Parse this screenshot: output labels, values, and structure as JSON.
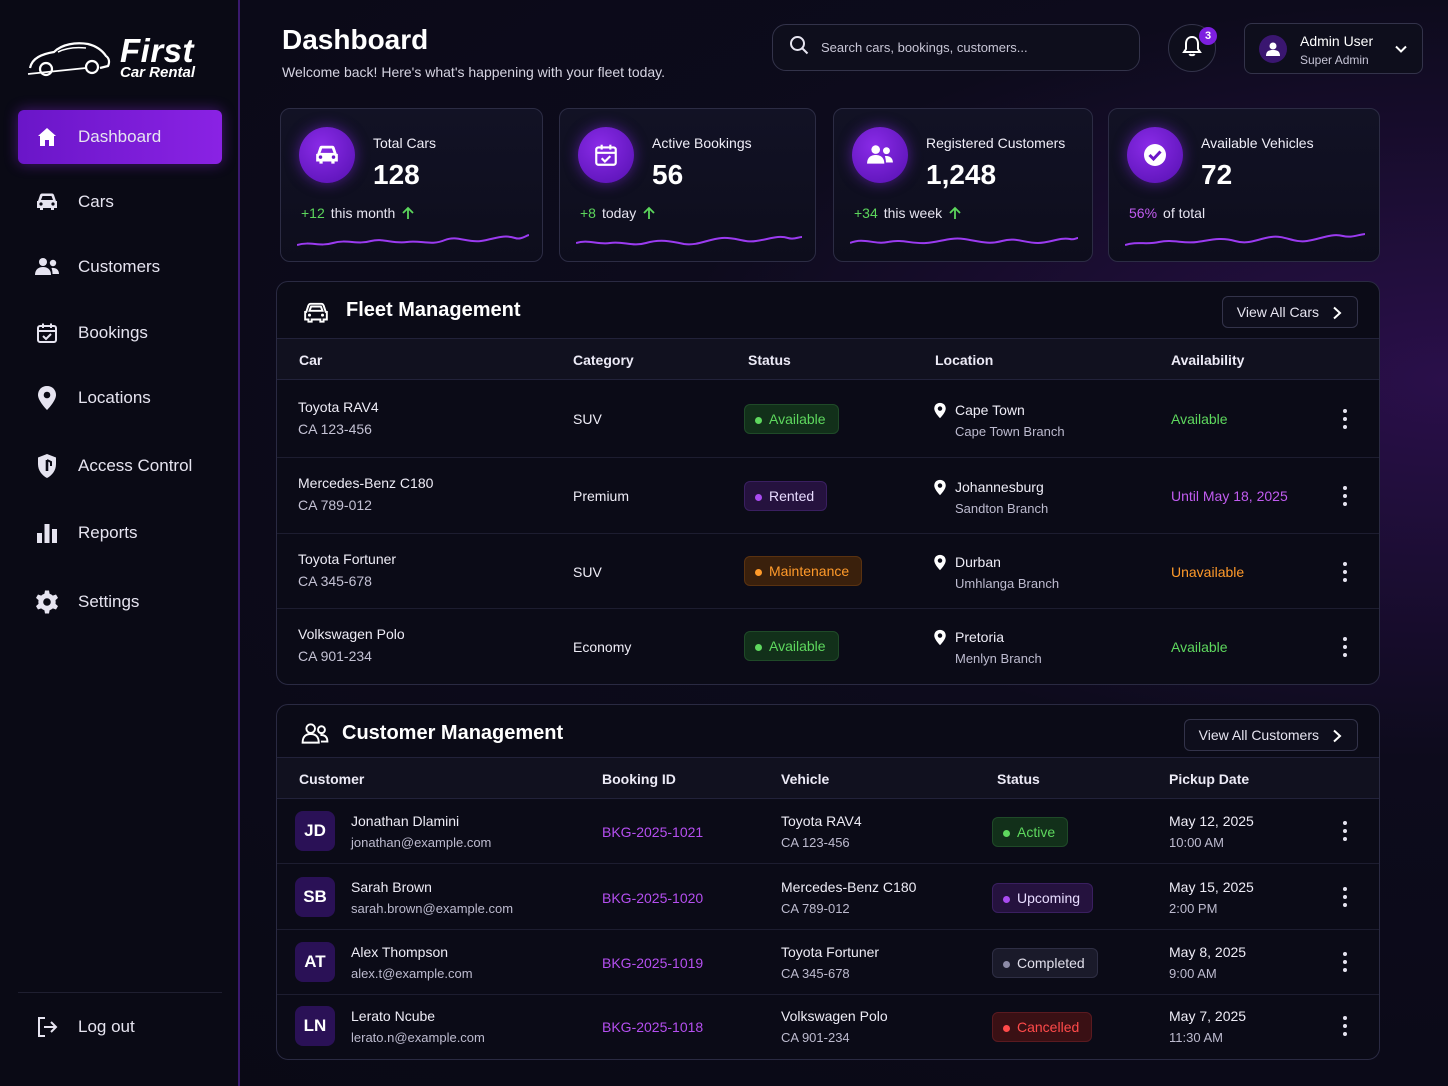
{
  "brand": {
    "line1": "First",
    "line2": "Car Rental"
  },
  "sidebar": {
    "items": [
      {
        "label": "Dashboard",
        "icon": "home-icon",
        "active": true
      },
      {
        "label": "Cars",
        "icon": "car-icon"
      },
      {
        "label": "Customers",
        "icon": "users-icon"
      },
      {
        "label": "Bookings",
        "icon": "calendar-icon"
      },
      {
        "label": "Locations",
        "icon": "pin-icon"
      },
      {
        "label": "Access Control",
        "icon": "shield-icon"
      },
      {
        "label": "Reports",
        "icon": "bar-chart-icon"
      },
      {
        "label": "Settings",
        "icon": "gear-icon"
      }
    ],
    "logout": "Log out"
  },
  "header": {
    "title": "Dashboard",
    "subtitle": "Welcome back! Here's what's happening with your fleet today.",
    "search_placeholder": "Search cars, bookings, customers...",
    "notifications": "3",
    "user_name": "Admin User",
    "user_role": "Super Admin"
  },
  "stats": [
    {
      "label": "Total Cars",
      "value": "128",
      "delta": "+12",
      "delta_text": "this month",
      "icon": "car-icon"
    },
    {
      "label": "Active Bookings",
      "value": "56",
      "delta": "+8",
      "delta_text": "today",
      "icon": "calendar-check-icon"
    },
    {
      "label": "Registered Customers",
      "value": "1,248",
      "delta": "+34",
      "delta_text": "this week",
      "icon": "users-icon"
    },
    {
      "label": "Available Vehicles",
      "value": "72",
      "delta": "56%",
      "delta_text": "of total",
      "icon": "check-circle-icon"
    }
  ],
  "fleet": {
    "title": "Fleet Management",
    "button": "View All Cars",
    "columns": [
      "Car",
      "Category",
      "Status",
      "Location",
      "Availability"
    ],
    "rows": [
      {
        "car": "Toyota RAV4",
        "plate": "CA 123-456",
        "category": "SUV",
        "status": "Available",
        "status_kind": "available",
        "city": "Cape Town",
        "branch": "Cape Town Branch",
        "availability": "Available",
        "avail_color": "#5ed85e"
      },
      {
        "car": "Mercedes-Benz C180",
        "plate": "CA 789-012",
        "category": "Premium",
        "status": "Rented",
        "status_kind": "rented",
        "city": "Johannesburg",
        "branch": "Sandton Branch",
        "availability": "Until May 18, 2025",
        "avail_color": "#c15cf0"
      },
      {
        "car": "Toyota Fortuner",
        "plate": "CA 345-678",
        "category": "SUV",
        "status": "Maintenance",
        "status_kind": "maintenance",
        "city": "Durban",
        "branch": "Umhlanga Branch",
        "availability": "Unavailable",
        "avail_color": "#ff9a2a"
      },
      {
        "car": "Volkswagen Polo",
        "plate": "CA 901-234",
        "category": "Economy",
        "status": "Available",
        "status_kind": "available",
        "city": "Pretoria",
        "branch": "Menlyn Branch",
        "availability": "Available",
        "avail_color": "#5ed85e"
      }
    ]
  },
  "customers": {
    "title": "Customer Management",
    "button": "View All Customers",
    "columns": [
      "Customer",
      "Booking ID",
      "Vehicle",
      "Status",
      "Pickup Date"
    ],
    "rows": [
      {
        "initials": "JD",
        "name": "Jonathan Dlamini",
        "email": "jonathan@example.com",
        "booking": "BKG-2025-1021",
        "vehicle": "Toyota RAV4",
        "plate": "CA 123-456",
        "status": "Active",
        "status_kind": "active",
        "date": "May 12, 2025",
        "time": "10:00 AM"
      },
      {
        "initials": "SB",
        "name": "Sarah Brown",
        "email": "sarah.brown@example.com",
        "booking": "BKG-2025-1020",
        "vehicle": "Mercedes-Benz C180",
        "plate": "CA 789-012",
        "status": "Upcoming",
        "status_kind": "upcoming",
        "date": "May 15, 2025",
        "time": "2:00 PM"
      },
      {
        "initials": "AT",
        "name": "Alex Thompson",
        "email": "alex.t@example.com",
        "booking": "BKG-2025-1019",
        "vehicle": "Toyota Fortuner",
        "plate": "CA 345-678",
        "status": "Completed",
        "status_kind": "completed",
        "date": "May 8, 2025",
        "time": "9:00 AM"
      },
      {
        "initials": "LN",
        "name": "Lerato Ncube",
        "email": "lerato.n@example.com",
        "booking": "BKG-2025-1018",
        "vehicle": "Volkswagen Polo",
        "plate": "CA 901-234",
        "status": "Cancelled",
        "status_kind": "cancelled",
        "date": "May 7, 2025",
        "time": "11:30 AM"
      }
    ]
  },
  "colors": {
    "accent": "#7d1fe0",
    "available": "#5ed85e",
    "rented": "#c15cf0",
    "maintenance": "#ff9a2a",
    "cancelled": "#ff4a4a"
  }
}
